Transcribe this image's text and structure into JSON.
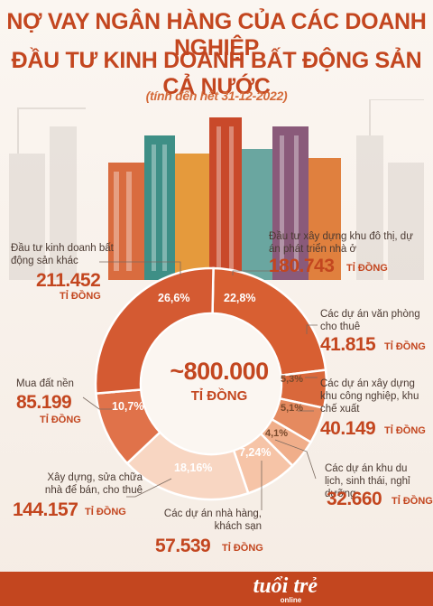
{
  "title_line1": "NỢ VAY NGÂN HÀNG CỦA CÁC DOANH NGHIỆP",
  "title_line2": "ĐẦU TƯ KINH DOANH BẤT ĐỘNG SẢN CẢ NƯỚC",
  "subtitle": "(tính đến hết 31-12-2022)",
  "center_value": "~800.000",
  "center_unit": "TỈ ĐỒNG",
  "unit": "TỈ ĐỒNG",
  "brand": "tuổi trẻ",
  "brand_sub": "online",
  "colors": {
    "accent": "#c3461f",
    "segments": [
      "#d85f32",
      "#d9683b",
      "#e58a5f",
      "#f0ae8a",
      "#f6c4a7",
      "#f8d6c2",
      "#e0724a",
      "#d45a32"
    ]
  },
  "chart_data": {
    "type": "pie",
    "variant": "donut",
    "center_label": "~800.000 TỈ ĐỒNG",
    "slices": [
      {
        "label": "Đầu tư xây dựng khu đô thị, dự án phát triển nhà ở",
        "value": 180743,
        "value_text": "180.743",
        "percent_text": "22,8%"
      },
      {
        "label": "Các dự án văn phòng cho thuê",
        "value": 41815,
        "value_text": "41.815",
        "percent_text": "5,3%"
      },
      {
        "label": "Các dự án xây dựng khu công nghiệp, khu chế xuất",
        "value": 40149,
        "value_text": "40.149",
        "percent_text": "5,1%"
      },
      {
        "label": "Các dự án khu du lịch, sinh thái, nghỉ dưỡng",
        "value": 32660,
        "value_text": "32.660",
        "percent_text": "4,1%"
      },
      {
        "label": "Các dự án nhà hàng, khách sạn",
        "value": 57539,
        "value_text": "57.539",
        "percent_text": "7,24%"
      },
      {
        "label": "Xây dựng, sửa chữa nhà để bán, cho thuê",
        "value": 144157,
        "value_text": "144.157",
        "percent_text": "18,16%"
      },
      {
        "label": "Mua đất nền",
        "value": 85199,
        "value_text": "85.199",
        "percent_text": "10,7%"
      },
      {
        "label": "Đầu tư kinh doanh bất động sản khác",
        "value": 211452,
        "value_text": "211.452",
        "percent_text": "26,6%"
      }
    ]
  }
}
